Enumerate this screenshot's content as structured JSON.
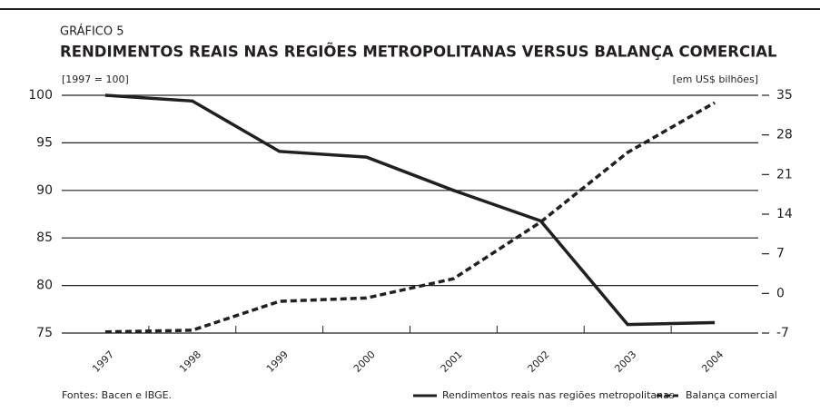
{
  "chart_data": {
    "type": "line",
    "label": "GRÁFICO 5",
    "title": "RENDIMENTOS REAIS NAS REGIÕES METROPOLITANAS VERSUS BALANÇA COMERCIAL",
    "y_label": "[1997 = 100]",
    "y2_label": "[em US$ bilhões]",
    "source": "Fontes: Bacen e IBGE.",
    "categories": [
      "1997",
      "1998",
      "1999",
      "2000",
      "2001",
      "2002",
      "2003",
      "2004"
    ],
    "series": [
      {
        "name": "Rendimentos reais nas regiões metropolitanas",
        "color": "#231f20",
        "line_style": "solid",
        "axis": "y",
        "values": [
          100,
          99.4,
          94.1,
          93.5,
          90,
          86.8,
          75.9,
          76.1
        ]
      },
      {
        "name": "Balança comercial",
        "color": "#231f20",
        "line_style": "dashed",
        "axis": "y2",
        "values": [
          -6.8,
          -6.5,
          -1.4,
          -0.8,
          2.6,
          12.6,
          24.9,
          33.7
        ]
      }
    ],
    "ylim": [
      75,
      100
    ],
    "yticks": [
      75,
      80,
      85,
      90,
      95,
      100
    ],
    "y2lim": [
      -7,
      35
    ],
    "y2ticks": [
      -7,
      0,
      7,
      14,
      21,
      28,
      35
    ],
    "grid": true
  }
}
